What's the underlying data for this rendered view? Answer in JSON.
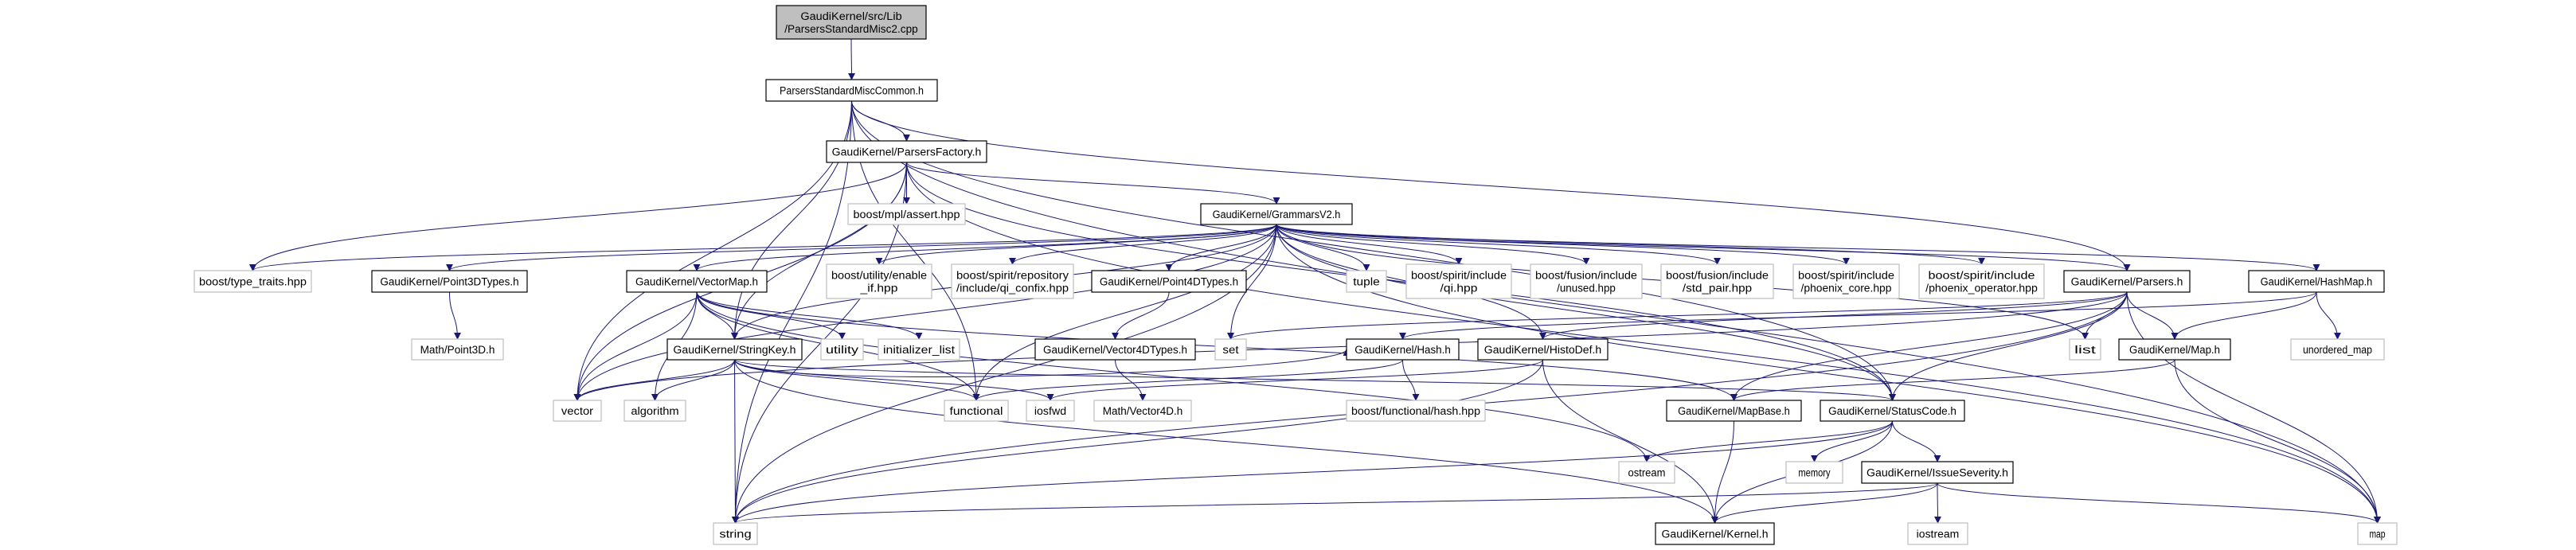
{
  "colors": {
    "edge": "#191970",
    "external_border": "#bfbfbf",
    "root_fill": "#bfbfbf",
    "internal_border": "#000000"
  },
  "nodes": [
    {
      "id": "cpp",
      "lines": [
        "GaudiKernel/src/Lib",
        "/ParsersStandardMisc2.cpp"
      ],
      "kind": "root"
    },
    {
      "id": "common",
      "lines": [
        "ParsersStandardMiscCommon.h"
      ],
      "kind": "internal"
    },
    {
      "id": "factory",
      "lines": [
        "GaudiKernel/ParsersFactory.h"
      ],
      "kind": "internal"
    },
    {
      "id": "mplassert",
      "lines": [
        "boost/mpl/assert.hpp"
      ],
      "kind": "external"
    },
    {
      "id": "grammars",
      "lines": [
        "GaudiKernel/GrammarsV2.h"
      ],
      "kind": "internal"
    },
    {
      "id": "typetraits",
      "lines": [
        "boost/type_traits.hpp"
      ],
      "kind": "external"
    },
    {
      "id": "p3dtypes",
      "lines": [
        "GaudiKernel/Point3DTypes.h"
      ],
      "kind": "internal"
    },
    {
      "id": "vectormap",
      "lines": [
        "GaudiKernel/VectorMap.h"
      ],
      "kind": "internal"
    },
    {
      "id": "enableif",
      "lines": [
        "boost/utility/enable",
        "_if.hpp"
      ],
      "kind": "external"
    },
    {
      "id": "qiconfix",
      "lines": [
        "boost/spirit/repository",
        "/include/qi_confix.hpp"
      ],
      "kind": "external"
    },
    {
      "id": "p4dtypes",
      "lines": [
        "GaudiKernel/Point4DTypes.h"
      ],
      "kind": "internal"
    },
    {
      "id": "tuple",
      "lines": [
        "tuple"
      ],
      "kind": "external"
    },
    {
      "id": "qi",
      "lines": [
        "boost/spirit/include",
        "/qi.hpp"
      ],
      "kind": "external"
    },
    {
      "id": "unused",
      "lines": [
        "boost/fusion/include",
        "/unused.hpp"
      ],
      "kind": "external"
    },
    {
      "id": "stdpair",
      "lines": [
        "boost/fusion/include",
        "/std_pair.hpp"
      ],
      "kind": "external"
    },
    {
      "id": "phxcore",
      "lines": [
        "boost/spirit/include",
        "/phoenix_core.hpp"
      ],
      "kind": "external"
    },
    {
      "id": "phxop",
      "lines": [
        "boost/spirit/include",
        "/phoenix_operator.hpp"
      ],
      "kind": "external"
    },
    {
      "id": "parsers",
      "lines": [
        "GaudiKernel/Parsers.h"
      ],
      "kind": "internal"
    },
    {
      "id": "hashmap",
      "lines": [
        "GaudiKernel/HashMap.h"
      ],
      "kind": "internal"
    },
    {
      "id": "point3d",
      "lines": [
        "Math/Point3D.h"
      ],
      "kind": "external"
    },
    {
      "id": "stringkey",
      "lines": [
        "GaudiKernel/StringKey.h"
      ],
      "kind": "internal"
    },
    {
      "id": "utility",
      "lines": [
        "utility"
      ],
      "kind": "external"
    },
    {
      "id": "initlist",
      "lines": [
        "initializer_list"
      ],
      "kind": "external"
    },
    {
      "id": "v4dtypes",
      "lines": [
        "GaudiKernel/Vector4DTypes.h"
      ],
      "kind": "internal"
    },
    {
      "id": "set",
      "lines": [
        "set"
      ],
      "kind": "external"
    },
    {
      "id": "hash",
      "lines": [
        "GaudiKernel/Hash.h"
      ],
      "kind": "internal"
    },
    {
      "id": "histodef",
      "lines": [
        "GaudiKernel/HistoDef.h"
      ],
      "kind": "internal"
    },
    {
      "id": "list",
      "lines": [
        "list"
      ],
      "kind": "external"
    },
    {
      "id": "map_h",
      "lines": [
        "GaudiKernel/Map.h"
      ],
      "kind": "internal"
    },
    {
      "id": "unorderedmap",
      "lines": [
        "unordered_map"
      ],
      "kind": "external"
    },
    {
      "id": "vector",
      "lines": [
        "vector"
      ],
      "kind": "external"
    },
    {
      "id": "algorithm",
      "lines": [
        "algorithm"
      ],
      "kind": "external"
    },
    {
      "id": "functional",
      "lines": [
        "functional"
      ],
      "kind": "external"
    },
    {
      "id": "iosfwd",
      "lines": [
        "iosfwd"
      ],
      "kind": "external"
    },
    {
      "id": "vector4d",
      "lines": [
        "Math/Vector4D.h"
      ],
      "kind": "external"
    },
    {
      "id": "boosthash",
      "lines": [
        "boost/functional/hash.hpp"
      ],
      "kind": "external"
    },
    {
      "id": "mapbase",
      "lines": [
        "GaudiKernel/MapBase.h"
      ],
      "kind": "internal"
    },
    {
      "id": "statuscode",
      "lines": [
        "GaudiKernel/StatusCode.h"
      ],
      "kind": "internal"
    },
    {
      "id": "ostream",
      "lines": [
        "ostream"
      ],
      "kind": "external"
    },
    {
      "id": "memory",
      "lines": [
        "memory"
      ],
      "kind": "external"
    },
    {
      "id": "issueseverity",
      "lines": [
        "GaudiKernel/IssueSeverity.h"
      ],
      "kind": "internal"
    },
    {
      "id": "string",
      "lines": [
        "string"
      ],
      "kind": "external"
    },
    {
      "id": "kernel",
      "lines": [
        "GaudiKernel/Kernel.h"
      ],
      "kind": "internal"
    },
    {
      "id": "iostream",
      "lines": [
        "iostream"
      ],
      "kind": "external"
    },
    {
      "id": "map",
      "lines": [
        "map"
      ],
      "kind": "external"
    }
  ],
  "edges": [
    [
      "cpp",
      "common"
    ],
    [
      "common",
      "factory"
    ],
    [
      "common",
      "map"
    ],
    [
      "common",
      "statuscode"
    ],
    [
      "common",
      "parsers"
    ],
    [
      "common",
      "string"
    ],
    [
      "common",
      "vector"
    ],
    [
      "common",
      "stringkey"
    ],
    [
      "common",
      "functional"
    ],
    [
      "factory",
      "mplassert"
    ],
    [
      "factory",
      "grammars"
    ],
    [
      "factory",
      "typetraits"
    ],
    [
      "factory",
      "string"
    ],
    [
      "factory",
      "vector"
    ],
    [
      "factory",
      "map"
    ],
    [
      "factory",
      "statuscode"
    ],
    [
      "factory",
      "stringkey"
    ],
    [
      "grammars",
      "typetraits"
    ],
    [
      "grammars",
      "p3dtypes"
    ],
    [
      "grammars",
      "vectormap"
    ],
    [
      "grammars",
      "enableif"
    ],
    [
      "grammars",
      "qiconfix"
    ],
    [
      "grammars",
      "p4dtypes"
    ],
    [
      "grammars",
      "set"
    ],
    [
      "grammars",
      "tuple"
    ],
    [
      "grammars",
      "qi"
    ],
    [
      "grammars",
      "unused"
    ],
    [
      "grammars",
      "stdpair"
    ],
    [
      "grammars",
      "phxcore"
    ],
    [
      "grammars",
      "phxop"
    ],
    [
      "grammars",
      "parsers"
    ],
    [
      "grammars",
      "hashmap"
    ],
    [
      "grammars",
      "string"
    ],
    [
      "grammars",
      "vector"
    ],
    [
      "grammars",
      "stringkey"
    ],
    [
      "grammars",
      "histodef"
    ],
    [
      "grammars",
      "list"
    ],
    [
      "grammars",
      "map"
    ],
    [
      "grammars",
      "statuscode"
    ],
    [
      "grammars",
      "functional"
    ],
    [
      "p3dtypes",
      "point3d"
    ],
    [
      "vectormap",
      "stringkey"
    ],
    [
      "vectormap",
      "vector"
    ],
    [
      "vectormap",
      "algorithm"
    ],
    [
      "vectormap",
      "utility"
    ],
    [
      "vectormap",
      "initlist"
    ],
    [
      "vectormap",
      "functional"
    ],
    [
      "vectormap",
      "ostream"
    ],
    [
      "vectormap",
      "mapbase"
    ],
    [
      "p4dtypes",
      "v4dtypes"
    ],
    [
      "v4dtypes",
      "vector4d"
    ],
    [
      "stringkey",
      "vector"
    ],
    [
      "stringkey",
      "algorithm"
    ],
    [
      "stringkey",
      "string"
    ],
    [
      "stringkey",
      "functional"
    ],
    [
      "stringkey",
      "iosfwd"
    ],
    [
      "stringkey",
      "hash"
    ],
    [
      "stringkey",
      "kernel"
    ],
    [
      "stringkey",
      "statuscode"
    ],
    [
      "hash",
      "boosthash"
    ],
    [
      "hash",
      "functional"
    ],
    [
      "histodef",
      "iosfwd"
    ],
    [
      "histodef",
      "string"
    ],
    [
      "histodef",
      "kernel"
    ],
    [
      "parsers",
      "list"
    ],
    [
      "parsers",
      "map_h"
    ],
    [
      "parsers",
      "map"
    ],
    [
      "parsers",
      "statuscode"
    ],
    [
      "parsers",
      "histodef"
    ],
    [
      "parsers",
      "set"
    ],
    [
      "parsers",
      "vector"
    ],
    [
      "parsers",
      "string"
    ],
    [
      "parsers",
      "mapbase"
    ],
    [
      "hashmap",
      "map_h"
    ],
    [
      "hashmap",
      "unorderedmap"
    ],
    [
      "hashmap",
      "hash"
    ],
    [
      "map_h",
      "mapbase"
    ],
    [
      "map_h",
      "map"
    ],
    [
      "mapbase",
      "kernel"
    ],
    [
      "statuscode",
      "ostream"
    ],
    [
      "statuscode",
      "memory"
    ],
    [
      "statuscode",
      "issueseverity"
    ],
    [
      "statuscode",
      "kernel"
    ],
    [
      "statuscode",
      "string"
    ],
    [
      "issueseverity",
      "string"
    ],
    [
      "issueseverity",
      "kernel"
    ],
    [
      "issueseverity",
      "iostream"
    ],
    [
      "issueseverity",
      "map"
    ]
  ]
}
